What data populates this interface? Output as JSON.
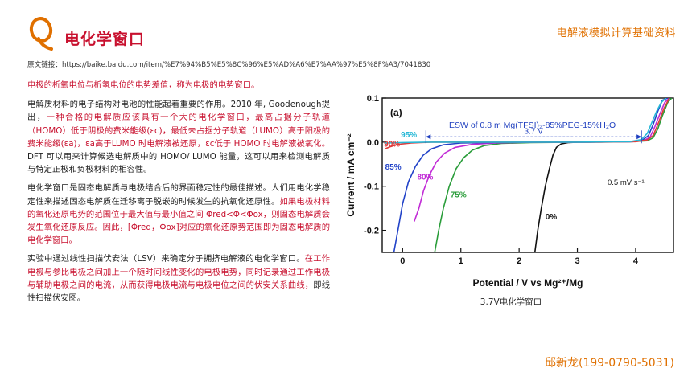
{
  "header": {
    "title": "电化学窗口",
    "right_title": "电解液模拟计算基础资料"
  },
  "source": {
    "label": "原文链接：",
    "url": "https://baike.baidu.com/item/%E7%94%B5%E5%8C%96%E5%AD%A6%E7%AA%97%E5%8F%A3/7041830"
  },
  "body": {
    "lead": "电极的析氧电位与析氢电位的电势差值，称为电极的电势窗口。",
    "p1": [
      {
        "t": "电解质材料的电子结构对电池的性能起着重要的作用。2010 年, Goodenough提出，",
        "red": false
      },
      {
        "t": "一种合格的电解质应该具有一个大的电化学窗口，最高占据分子轨道（HOMO）低于阴极的费米能级(εc)，最低未占据分子轨道（LUMO）高于阳极的费米能级(εa)，εa高于LUMO 时电解液被还原，εc低于 HOMO 时电解液被氧化。",
        "red": true
      },
      {
        "t": "DFT 可以用来计算候选电解质中的 HOMO/ LUMO 能量，这可以用来检测电解质与特定正极和负极材料的相容性。",
        "red": false
      }
    ],
    "p2": [
      {
        "t": "电化学窗口是固态电解质与电极结合后的界面稳定性的最佳描述。人们用电化学稳定性来描述固态电解质在迁移离子脱嵌的时候发生的抗氧化还原性。",
        "red": false
      },
      {
        "t": "如果电极材料的氧化还原电势的范围位于最大值与最小值之间 Φred<Φ<Φox，则固态电解质会发生氧化还原反应。因此，[Φred，Φox]对应的氧化还原势范围即为固态电解质的电化学窗口。",
        "red": true
      }
    ],
    "p3": [
      {
        "t": "实验中通过线性扫描伏安法（LSV）来确定分子拥挤电解液的电化学窗口。",
        "red": false
      },
      {
        "t": "在工作电极与参比电极之间加上一个随时间线性变化的电极电势，同时记录通过工作电极与辅助电极之间的电流，从而获得电极电流与电极电位之间的伏安关系曲线，",
        "red": true
      },
      {
        "t": "即线性扫描伏安图。",
        "red": false
      }
    ]
  },
  "chart_data": {
    "type": "line",
    "panel_label": "(a)",
    "title": "ESW of 0.8 m Mg(TFSI)₂-85%PEG-15%H₂O",
    "xlabel": "Potential / V vs Mg²⁺/Mg",
    "ylabel": "Current / mA cm⁻²",
    "xlim": [
      -0.35,
      4.65
    ],
    "ylim": [
      -0.25,
      0.1
    ],
    "xticks": [
      "0",
      "1",
      "2",
      "3",
      "4"
    ],
    "yticks": [
      "0.1",
      "0.0",
      "-0.1",
      "-0.2"
    ],
    "annotation_window": "3.7 V",
    "annotation_rate": "0.5 mV s⁻¹",
    "series": [
      {
        "name": "0%",
        "color": "#111111",
        "x": [
          2.27,
          2.32,
          2.38,
          2.45,
          2.52,
          2.58,
          2.64,
          2.72,
          2.85,
          3.0
        ],
        "y": [
          -0.25,
          -0.2,
          -0.15,
          -0.1,
          -0.06,
          -0.03,
          -0.012,
          -0.004,
          -0.001,
          0.0
        ]
      },
      {
        "name": "75%",
        "color": "#2a9d3a",
        "x": [
          0.55,
          0.62,
          0.7,
          0.8,
          0.92,
          1.05,
          1.2,
          1.4,
          1.7,
          2.2,
          3.0,
          3.9,
          4.2,
          4.3,
          4.38,
          4.46,
          4.55,
          4.62
        ],
        "y": [
          -0.25,
          -0.2,
          -0.15,
          -0.1,
          -0.06,
          -0.035,
          -0.018,
          -0.008,
          -0.003,
          -0.001,
          0.0,
          0.001,
          0.003,
          0.01,
          0.03,
          0.06,
          0.09,
          0.1
        ]
      },
      {
        "name": "80%",
        "color": "#c12bd6",
        "x": [
          0.2,
          0.28,
          0.36,
          0.46,
          0.58,
          0.72,
          0.9,
          1.2,
          1.6,
          2.2,
          3.0,
          3.9,
          4.15,
          4.25,
          4.33,
          4.42,
          4.5,
          4.58
        ],
        "y": [
          -0.18,
          -0.15,
          -0.11,
          -0.075,
          -0.045,
          -0.025,
          -0.012,
          -0.005,
          -0.002,
          0.0,
          0.0,
          0.001,
          0.004,
          0.012,
          0.035,
          0.065,
          0.09,
          0.1
        ]
      },
      {
        "name": "85%",
        "color": "#2243c8",
        "x": [
          -0.15,
          -0.08,
          0.0,
          0.1,
          0.22,
          0.35,
          0.5,
          0.7,
          1.0,
          1.5,
          2.3,
          3.2,
          3.95,
          4.12,
          4.22,
          4.3,
          4.38,
          4.46,
          4.55
        ],
        "y": [
          -0.25,
          -0.2,
          -0.14,
          -0.09,
          -0.055,
          -0.03,
          -0.015,
          -0.006,
          -0.002,
          -0.001,
          0.0,
          0.0,
          0.001,
          0.005,
          0.015,
          0.04,
          0.07,
          0.095,
          0.1
        ]
      },
      {
        "name": "90%",
        "color": "#e03a3a",
        "x": [
          -0.3,
          -0.2,
          -0.1,
          0.0,
          0.15,
          0.3,
          0.5,
          0.8,
          1.2,
          1.8,
          2.6,
          3.4,
          4.0,
          4.2,
          4.3,
          4.38,
          4.48,
          4.58
        ],
        "y": [
          -0.015,
          -0.01,
          -0.006,
          -0.004,
          -0.002,
          -0.001,
          0.0,
          0.0,
          0.0,
          0.0,
          0.0,
          0.0,
          0.001,
          0.005,
          0.015,
          0.04,
          0.075,
          0.1
        ]
      },
      {
        "name": "95%",
        "color": "#27b8d6",
        "x": [
          -0.3,
          0.0,
          0.4,
          1.0,
          2.0,
          3.0,
          3.9,
          4.1,
          4.2,
          4.28,
          4.36,
          4.44,
          4.52
        ],
        "y": [
          -0.002,
          -0.001,
          0.0,
          0.0,
          0.0,
          0.0,
          0.001,
          0.006,
          0.02,
          0.045,
          0.07,
          0.09,
          0.1
        ]
      }
    ]
  },
  "figure_caption": "3.7V电化学窗口",
  "footer": {
    "contact": "邱新龙(199-0790-5031)"
  },
  "colors": {
    "accent_red": "#c8102e",
    "accent_orange": "#e07000"
  }
}
